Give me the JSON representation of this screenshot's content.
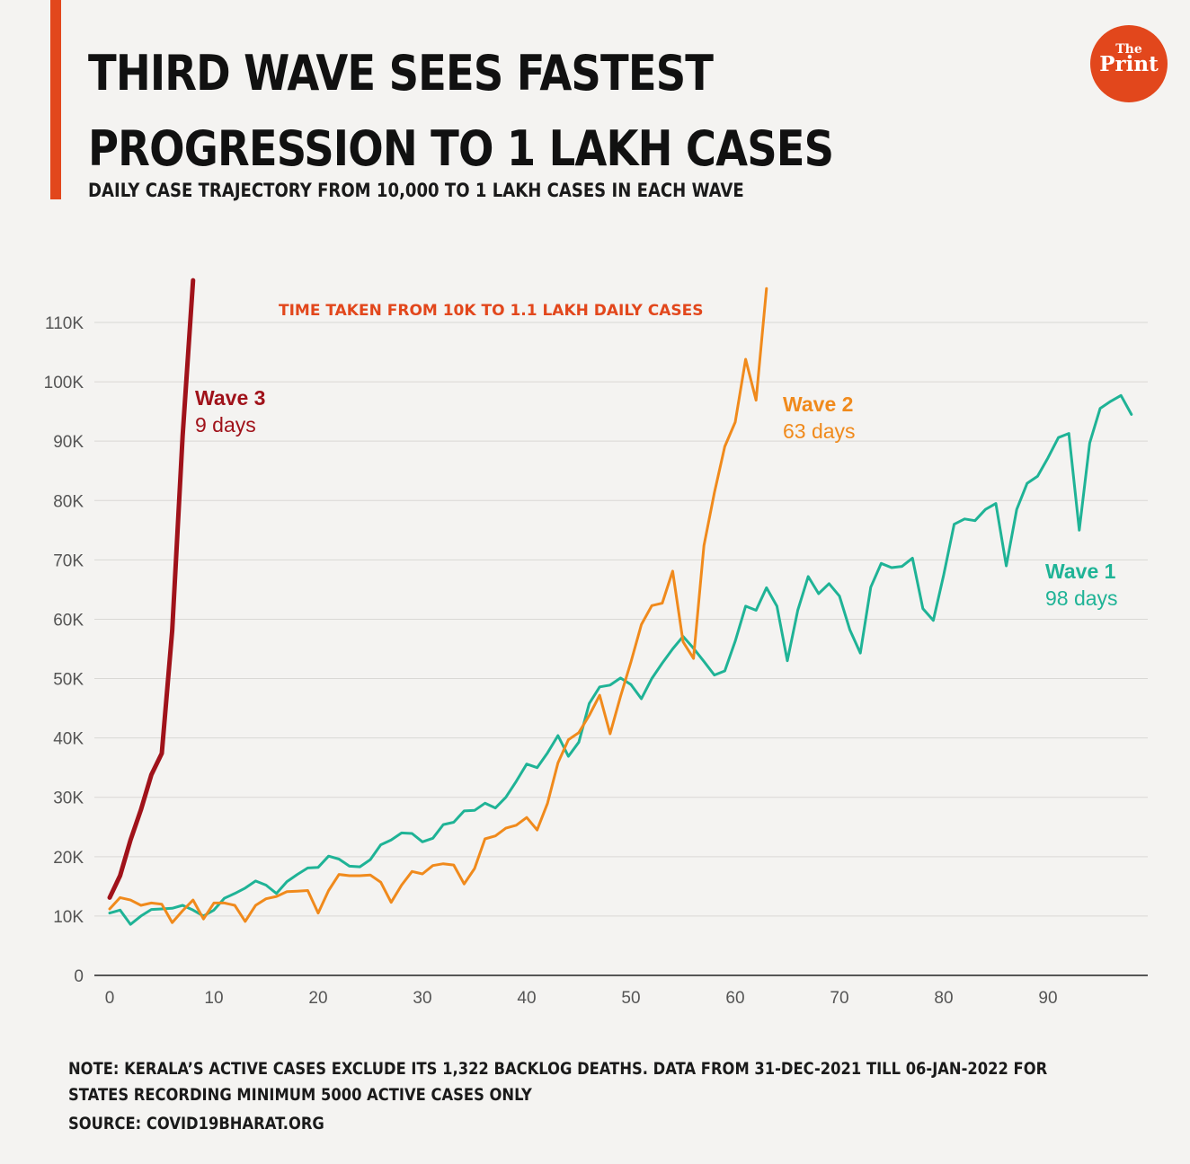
{
  "header": {
    "title": "THIRD WAVE SEES FASTEST PROGRESSION TO 1 LAKH CASES",
    "subtitle": "DAILY CASE TRAJECTORY FROM 10,000 TO 1 LAKH CASES IN EACH WAVE"
  },
  "logo": {
    "the": "The",
    "print": "Print",
    "color": "#e2471c"
  },
  "footer": {
    "note": "NOTE: KERALA’S ACTIVE CASES EXCLUDE ITS 1,322 BACKLOG DEATHS. DATA FROM 31-DEC-2021 TILL 06-JAN-2022 FOR STATES RECORDING MINIMUM 5000 ACTIVE CASES ONLY",
    "source": "SOURCE: COVID19BHARAT.ORG"
  },
  "chart_data": {
    "type": "line",
    "annotation": "TIME TAKEN FROM 10K TO 1.1 LAKH DAILY CASES",
    "xlim": [
      0,
      100
    ],
    "ylim": [
      0,
      110000
    ],
    "x_ticks": [
      0,
      10,
      20,
      30,
      40,
      50,
      60,
      70,
      80,
      90
    ],
    "y_ticks": [
      0,
      10000,
      20000,
      30000,
      40000,
      50000,
      60000,
      70000,
      80000,
      90000,
      100000,
      110000
    ],
    "y_tick_labels": [
      "0",
      "10K",
      "20K",
      "30K",
      "40K",
      "50K",
      "60K",
      "70K",
      "80K",
      "90K",
      "100K",
      "110K"
    ],
    "grid": true,
    "series": [
      {
        "name": "Wave 1",
        "days_label": "98 days",
        "color": "#1fb396",
        "values": [
          10500,
          11000,
          8600,
          10000,
          11100,
          11200,
          11300,
          11800,
          11000,
          10000,
          11000,
          13000,
          13800,
          14700,
          15900,
          15200,
          13800,
          15800,
          17000,
          18100,
          18200,
          20100,
          19600,
          18400,
          18300,
          19500,
          22000,
          22800,
          24000,
          23900,
          22500,
          23100,
          25400,
          25800,
          27700,
          27800,
          29000,
          28200,
          30000,
          32700,
          35600,
          35000,
          37500,
          40400,
          36900,
          39300,
          45800,
          48600,
          48900,
          50100,
          49000,
          46600,
          50000,
          52600,
          55000,
          57100,
          55100,
          52900,
          50600,
          51300,
          56300,
          62200,
          61500,
          65300,
          62200,
          53000,
          61500,
          67200,
          64300,
          66000,
          63900,
          58200,
          54300,
          65400,
          69400,
          68700,
          68900,
          70300,
          61800,
          59800,
          67500,
          76000,
          76900,
          76600,
          78500,
          79500,
          69000,
          78500,
          82900,
          84100,
          87200,
          90600,
          91300,
          75000,
          89700,
          95500,
          96700,
          97700,
          94500
        ]
      },
      {
        "name": "Wave 2",
        "days_label": "63 days",
        "color": "#f08a1c",
        "values": [
          11200,
          13100,
          12700,
          11800,
          12200,
          12000,
          8900,
          10900,
          12700,
          9500,
          12200,
          12200,
          11800,
          9100,
          11800,
          12900,
          13300,
          14100,
          14200,
          14300,
          10500,
          14300,
          17000,
          16800,
          16800,
          16900,
          15700,
          12300,
          15200,
          17500,
          17100,
          18500,
          18800,
          18600,
          15400,
          18000,
          23000,
          23500,
          24800,
          25300,
          26600,
          24500,
          29000,
          35800,
          39700,
          40900,
          43800,
          47200,
          40700,
          47000,
          52800,
          59100,
          62300,
          62700,
          68100,
          56200,
          53400,
          72400,
          81300,
          89100,
          93200,
          103800,
          96900,
          115700
        ]
      },
      {
        "name": "Wave 3",
        "days_label": "9 days",
        "color": "#a0121a",
        "values": [
          13100,
          16800,
          22800,
          27900,
          33800,
          37400,
          58100,
          90900,
          117100
        ]
      }
    ]
  }
}
